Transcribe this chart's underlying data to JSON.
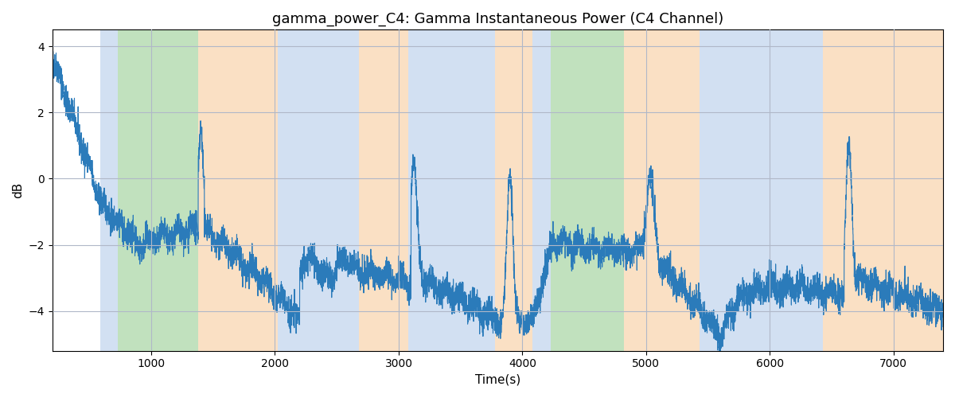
{
  "title": "gamma_power_C4: Gamma Instantaneous Power (C4 Channel)",
  "xlabel": "Time(s)",
  "ylabel": "dB",
  "xlim": [
    200,
    7400
  ],
  "ylim": [
    -5.2,
    4.5
  ],
  "yticks": [
    -4,
    -2,
    0,
    2,
    4
  ],
  "line_color": "#2b7bba",
  "line_width": 0.8,
  "bg_color": "#ffffff",
  "grid_color": "#b0b8c8",
  "title_fontsize": 13,
  "label_fontsize": 11,
  "colored_bands": [
    {
      "xstart": 590,
      "xend": 730,
      "color": "#adc8e8",
      "alpha": 0.55
    },
    {
      "xstart": 730,
      "xend": 1380,
      "color": "#8fc98a",
      "alpha": 0.55
    },
    {
      "xstart": 1380,
      "xend": 2020,
      "color": "#f7c895",
      "alpha": 0.55
    },
    {
      "xstart": 2020,
      "xend": 2680,
      "color": "#adc8e8",
      "alpha": 0.55
    },
    {
      "xstart": 2680,
      "xend": 3080,
      "color": "#f7c895",
      "alpha": 0.55
    },
    {
      "xstart": 3080,
      "xend": 3780,
      "color": "#adc8e8",
      "alpha": 0.55
    },
    {
      "xstart": 3780,
      "xend": 4080,
      "color": "#f7c895",
      "alpha": 0.55
    },
    {
      "xstart": 4080,
      "xend": 4230,
      "color": "#adc8e8",
      "alpha": 0.55
    },
    {
      "xstart": 4230,
      "xend": 4820,
      "color": "#8fc98a",
      "alpha": 0.55
    },
    {
      "xstart": 4820,
      "xend": 5430,
      "color": "#f7c895",
      "alpha": 0.55
    },
    {
      "xstart": 5430,
      "xend": 6280,
      "color": "#adc8e8",
      "alpha": 0.55
    },
    {
      "xstart": 6280,
      "xend": 6430,
      "color": "#adc8e8",
      "alpha": 0.55
    },
    {
      "xstart": 6430,
      "xend": 7400,
      "color": "#f7c895",
      "alpha": 0.55
    }
  ],
  "seed": 42,
  "n_points": 7200,
  "t_start": 200,
  "t_end": 7400
}
